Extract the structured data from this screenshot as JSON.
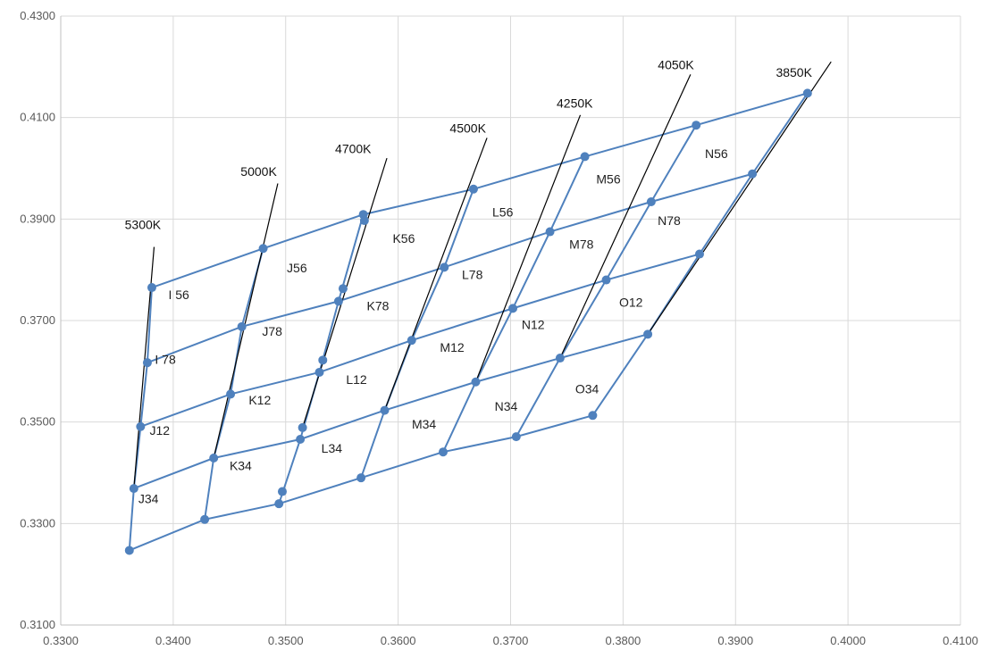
{
  "chart_data": {
    "type": "scatter",
    "title": "",
    "xlabel": "",
    "ylabel": "",
    "xlim": [
      0.33,
      0.41
    ],
    "ylim": [
      0.31,
      0.43
    ],
    "x_ticks": [
      "0.3300",
      "0.3400",
      "0.3500",
      "0.3600",
      "0.3700",
      "0.3800",
      "0.3900",
      "0.4000",
      "0.4100"
    ],
    "y_ticks": [
      "0.3100",
      "0.3300",
      "0.3500",
      "0.3700",
      "0.3900",
      "0.4100",
      "0.4300"
    ],
    "grid": true,
    "colors": {
      "grid_line": "#4f81bd",
      "cct_line": "#000000",
      "gridlines": "#d9d9d9",
      "axis": "#bfbfbf"
    },
    "grid_points": [
      [
        [
          0.3361,
          0.3247
        ],
        [
          0.3428,
          0.3308
        ],
        [
          0.3494,
          0.3339
        ],
        [
          0.3567,
          0.339
        ],
        [
          0.364,
          0.3441
        ],
        [
          0.3705,
          0.3471
        ],
        [
          0.3773,
          0.3513
        ]
      ],
      [
        [
          0.3365,
          0.3369
        ],
        [
          0.3436,
          0.3429
        ],
        [
          0.3513,
          0.3466
        ],
        [
          0.3588,
          0.3523
        ],
        [
          0.3669,
          0.3579
        ],
        [
          0.3744,
          0.3626
        ],
        [
          0.3822,
          0.3673
        ]
      ],
      [
        [
          0.3371,
          0.3491
        ],
        [
          0.3451,
          0.3555
        ],
        [
          0.353,
          0.3598
        ],
        [
          0.3612,
          0.3661
        ],
        [
          0.3702,
          0.3724
        ],
        [
          0.3785,
          0.378
        ],
        [
          0.3868,
          0.3831
        ]
      ],
      [
        [
          0.3377,
          0.3617
        ],
        [
          0.3461,
          0.3688
        ],
        [
          0.3547,
          0.3738
        ],
        [
          0.3641,
          0.3805
        ],
        [
          0.3735,
          0.3875
        ],
        [
          0.3825,
          0.3934
        ],
        [
          0.3915,
          0.3989
        ]
      ],
      [
        [
          0.3381,
          0.3765
        ],
        [
          0.348,
          0.3842
        ],
        [
          0.3569,
          0.3909
        ],
        [
          0.3667,
          0.3959
        ],
        [
          0.3766,
          0.4023
        ],
        [
          0.3865,
          0.4085
        ],
        [
          0.3964,
          0.4148
        ]
      ]
    ],
    "extra_points": [
      [
        0.3497,
        0.3363
      ],
      [
        0.3515,
        0.3489
      ],
      [
        0.3533,
        0.3622
      ],
      [
        0.3551,
        0.3763
      ],
      [
        0.357,
        0.3897
      ]
    ],
    "cct_lines": [
      {
        "label": "5300K",
        "points": [
          [
            0.3365,
            0.3369
          ],
          [
            0.3383,
            0.3845
          ]
        ]
      },
      {
        "label": "5000K",
        "points": [
          [
            0.3436,
            0.3429
          ],
          [
            0.3493,
            0.397
          ]
        ]
      },
      {
        "label": "4700K",
        "points": [
          [
            0.3515,
            0.3489
          ],
          [
            0.359,
            0.402
          ]
        ]
      },
      {
        "label": "4500K",
        "points": [
          [
            0.3588,
            0.3523
          ],
          [
            0.3679,
            0.406
          ]
        ]
      },
      {
        "label": "4250K",
        "points": [
          [
            0.3669,
            0.3579
          ],
          [
            0.3762,
            0.4105
          ]
        ]
      },
      {
        "label": "4050K",
        "points": [
          [
            0.3744,
            0.3626
          ],
          [
            0.386,
            0.4185
          ]
        ]
      },
      {
        "label": "3850K",
        "points": [
          [
            0.3822,
            0.3673
          ],
          [
            0.3985,
            0.421
          ]
        ]
      }
    ],
    "cct_label_positions": [
      [
        0.3373,
        0.388
      ],
      [
        0.3476,
        0.3985
      ],
      [
        0.356,
        0.403
      ],
      [
        0.3662,
        0.407
      ],
      [
        0.3757,
        0.412
      ],
      [
        0.3847,
        0.4195
      ],
      [
        0.3952,
        0.418
      ]
    ],
    "bin_labels": [
      {
        "text": "I 56",
        "x": 0.3405,
        "y": 0.3742
      },
      {
        "text": "J56",
        "x": 0.351,
        "y": 0.3795
      },
      {
        "text": "K56",
        "x": 0.3605,
        "y": 0.3853
      },
      {
        "text": "L56",
        "x": 0.3693,
        "y": 0.3905
      },
      {
        "text": "M56",
        "x": 0.3787,
        "y": 0.397
      },
      {
        "text": "N56",
        "x": 0.3883,
        "y": 0.402
      },
      {
        "text": "I 78",
        "x": 0.3393,
        "y": 0.3615
      },
      {
        "text": "J78",
        "x": 0.3488,
        "y": 0.367
      },
      {
        "text": "K78",
        "x": 0.3582,
        "y": 0.372
      },
      {
        "text": "L78",
        "x": 0.3666,
        "y": 0.3782
      },
      {
        "text": "M78",
        "x": 0.3763,
        "y": 0.3842
      },
      {
        "text": "N78",
        "x": 0.3841,
        "y": 0.3888
      },
      {
        "text": "J12",
        "x": 0.3388,
        "y": 0.3475
      },
      {
        "text": "K12",
        "x": 0.3477,
        "y": 0.3535
      },
      {
        "text": "L12",
        "x": 0.3563,
        "y": 0.3575
      },
      {
        "text": "M12",
        "x": 0.3648,
        "y": 0.3638
      },
      {
        "text": "N12",
        "x": 0.372,
        "y": 0.3683
      },
      {
        "text": "O12",
        "x": 0.3807,
        "y": 0.3727
      },
      {
        "text": "J34",
        "x": 0.3378,
        "y": 0.334
      },
      {
        "text": "K34",
        "x": 0.346,
        "y": 0.3405
      },
      {
        "text": "L34",
        "x": 0.3541,
        "y": 0.344
      },
      {
        "text": "M34",
        "x": 0.3623,
        "y": 0.3487
      },
      {
        "text": "N34",
        "x": 0.3696,
        "y": 0.3522
      },
      {
        "text": "O34",
        "x": 0.3768,
        "y": 0.3557
      }
    ]
  }
}
